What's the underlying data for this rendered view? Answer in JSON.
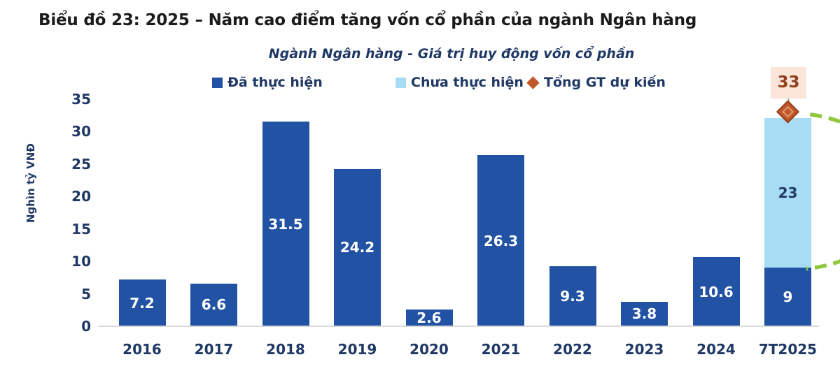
{
  "title": "Biểu đồ 23: 2025 – Năm cao điểm tăng vốn cổ phần của ngành Ngân hàng",
  "subtitle": "Ngành Ngân hàng - Giá trị huy động vốn cổ phần",
  "y_axis": {
    "label": "Nghìn tỷ VNĐ",
    "ticks": [
      35,
      30,
      25,
      20,
      15,
      10,
      5,
      0
    ]
  },
  "colors": {
    "realized_bar": "#2152A3",
    "unrealized_bar": "#A8DCF4",
    "navy_text": "#1F3864",
    "marker_fill": "#C2572B",
    "marker_stroke": "#A04420",
    "marker_inner": "#E09A6B",
    "callout_bg": "#FBE5D8",
    "callout_text": "#8F3E1D",
    "dashed_highlight": "#8FC73E",
    "axis_line": "#D9D9D9"
  },
  "chart_data": {
    "type": "bar",
    "stacked": true,
    "title": "Ngành Ngân hàng - Giá trị huy động vốn cổ phần",
    "ylabel": "Nghìn tỷ VNĐ",
    "ylim": [
      0,
      35
    ],
    "grid": false,
    "legend_position": "top",
    "categories": [
      "2016",
      "2017",
      "2018",
      "2019",
      "2020",
      "2021",
      "2022",
      "2023",
      "2024",
      "7T2025"
    ],
    "series": [
      {
        "name": "Đã thực hiện",
        "color": "#2152A3",
        "label_color": "#ffffff",
        "values": [
          7.2,
          6.6,
          31.5,
          24.2,
          2.6,
          26.3,
          9.3,
          3.8,
          10.6,
          9
        ]
      },
      {
        "name": "Chưa thực hiện",
        "color": "#A8DCF4",
        "label_color": "#1F3864",
        "values": [
          0,
          0,
          0,
          0,
          0,
          0,
          0,
          0,
          0,
          23
        ]
      }
    ],
    "markers": [
      {
        "name": "Tổng GT dự kiến",
        "category": "7T2025",
        "value": 33,
        "label": "33",
        "color": "#C2572B"
      }
    ]
  }
}
